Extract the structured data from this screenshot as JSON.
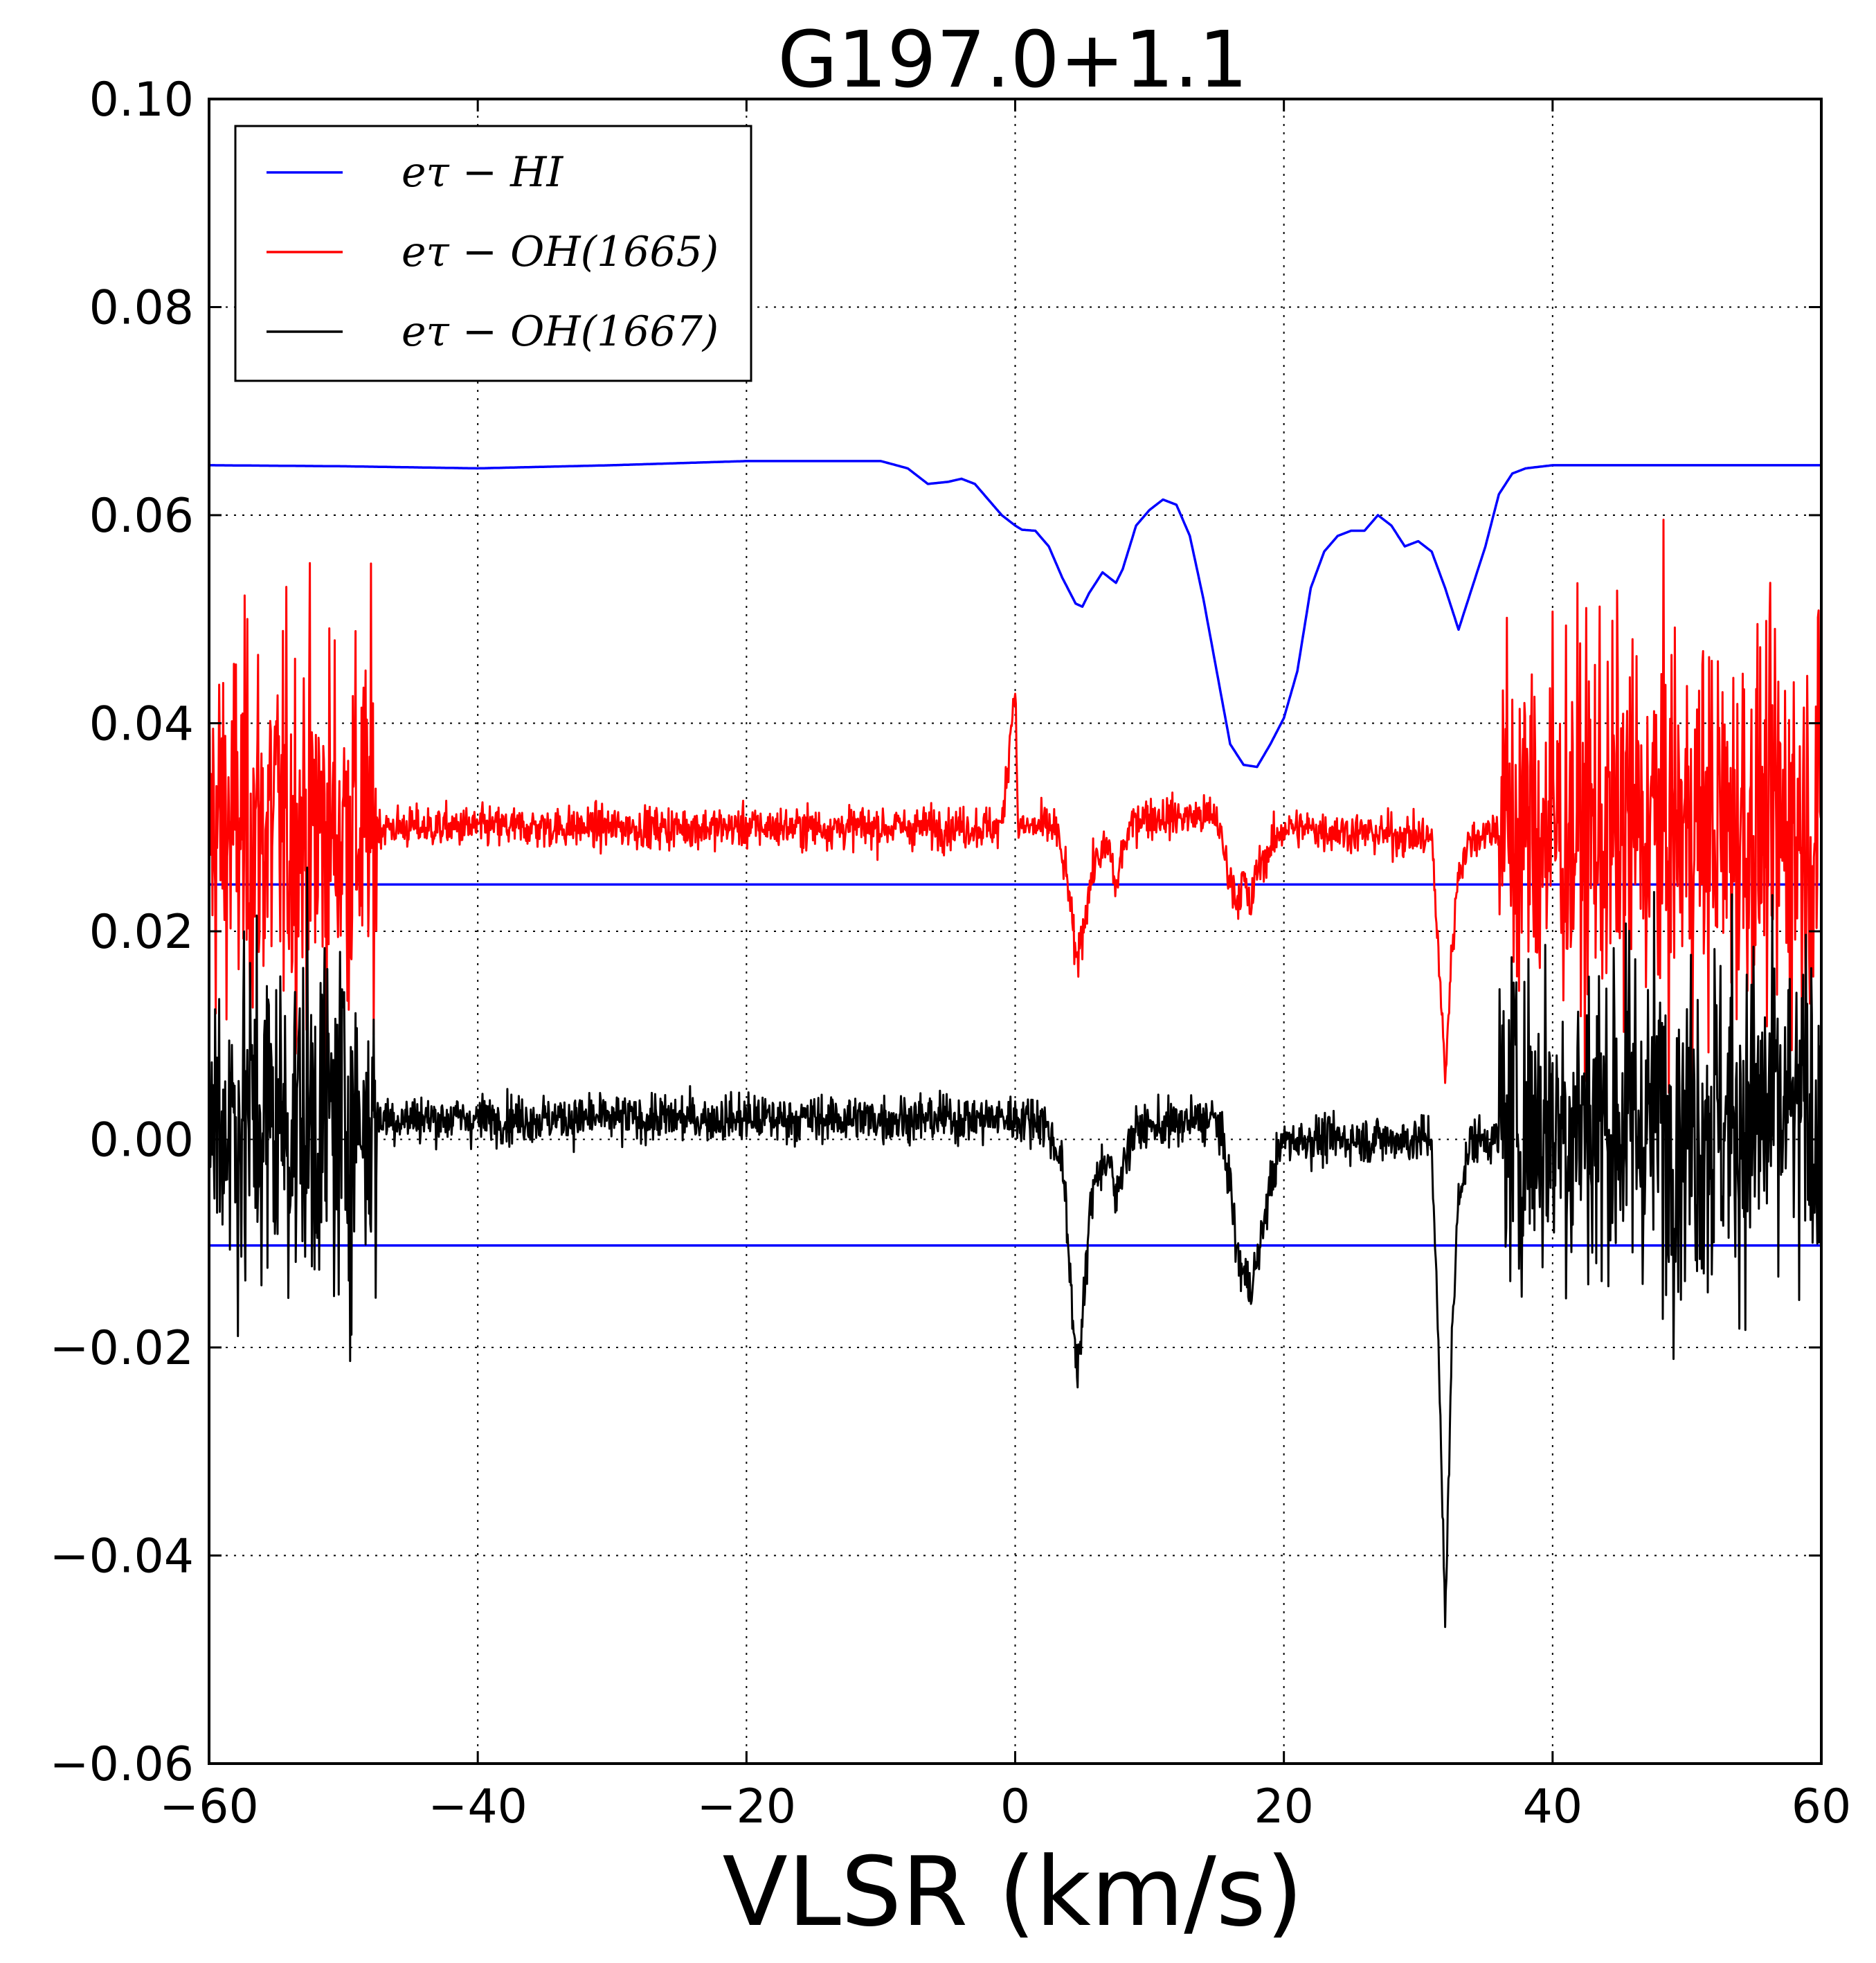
{
  "chart_data": {
    "type": "line",
    "title": "G197.0+1.1",
    "xlabel": "VLSR (km/s)",
    "ylabel": "",
    "xlim": [
      -60,
      60
    ],
    "ylim": [
      -0.06,
      0.1
    ],
    "xticks": [
      -60,
      -40,
      -20,
      0,
      20,
      40,
      60
    ],
    "xtick_labels": [
      "−60",
      "−40",
      "−20",
      "0",
      "20",
      "40",
      "60"
    ],
    "yticks": [
      -0.06,
      -0.04,
      -0.02,
      0.0,
      0.02,
      0.04,
      0.06,
      0.08,
      0.1
    ],
    "ytick_labels": [
      "−0.06",
      "−0.04",
      "−0.02",
      "0.00",
      "0.02",
      "0.04",
      "0.06",
      "0.08",
      "0.10"
    ],
    "grid": true,
    "legend_position": "top-left",
    "series": [
      {
        "name": "eτ − HI",
        "color": "#0000ff",
        "x": [
          -60,
          -50,
          -40,
          -30,
          -20,
          -10,
          -8,
          -6.5,
          -5,
          -4,
          -3,
          -2,
          -1,
          0,
          0.5,
          1.5,
          2.5,
          3.5,
          4.5,
          5,
          5.5,
          6.5,
          7.5,
          8,
          9,
          10,
          11,
          12,
          13,
          14,
          15,
          16,
          17,
          18,
          19,
          20,
          21,
          22,
          23,
          24,
          25,
          26,
          27,
          28,
          29,
          30,
          31,
          32,
          33,
          34,
          35,
          36,
          37,
          38,
          40,
          50,
          60
        ],
        "y": [
          0.0648,
          0.0647,
          0.0645,
          0.0648,
          0.0652,
          0.0652,
          0.0645,
          0.063,
          0.0632,
          0.0635,
          0.063,
          0.0615,
          0.06,
          0.059,
          0.0586,
          0.0585,
          0.057,
          0.054,
          0.0515,
          0.0512,
          0.0525,
          0.0545,
          0.0535,
          0.0548,
          0.059,
          0.0605,
          0.0615,
          0.061,
          0.058,
          0.052,
          0.045,
          0.038,
          0.036,
          0.0358,
          0.038,
          0.0405,
          0.045,
          0.053,
          0.0565,
          0.058,
          0.0585,
          0.0585,
          0.06,
          0.059,
          0.057,
          0.0575,
          0.0565,
          0.053,
          0.049,
          0.053,
          0.057,
          0.062,
          0.064,
          0.0645,
          0.0648,
          0.0648,
          0.0648
        ]
      },
      {
        "name": "eτ − OH(1665)",
        "color": "#ff0000",
        "baseline": 0.03,
        "x": [
          -60,
          -48,
          -47,
          -30,
          -20,
          -10,
          -1,
          0,
          0.2,
          3,
          4,
          4.5,
          5,
          5.5,
          6,
          7,
          7.5,
          8,
          9,
          15,
          15.8,
          16.5,
          17,
          17.5,
          18,
          19,
          20,
          31,
          31.5,
          32,
          32.5,
          33,
          34,
          36,
          40,
          50,
          60
        ],
        "y": [
          0.03,
          0.03,
          0.03,
          0.03,
          0.03,
          0.03,
          0.03,
          0.044,
          0.03,
          0.03,
          0.024,
          0.017,
          0.02,
          0.024,
          0.027,
          0.028,
          0.024,
          0.028,
          0.031,
          0.031,
          0.026,
          0.023,
          0.025,
          0.022,
          0.026,
          0.028,
          0.03,
          0.029,
          0.018,
          0.006,
          0.018,
          0.026,
          0.029,
          0.03,
          0.03,
          0.03,
          0.03
        ]
      },
      {
        "name": "eτ − OH(1667)",
        "color": "#000000",
        "baseline": 0.002,
        "x": [
          -60,
          -48,
          -47,
          -30,
          -20,
          -10,
          -1,
          2,
          3.5,
          4.3,
          4.6,
          5,
          5.5,
          6,
          7,
          7.5,
          8,
          9,
          15,
          16,
          16.5,
          17,
          17.5,
          18,
          19,
          20,
          31,
          31.5,
          32,
          32.5,
          33,
          34,
          36,
          40,
          50,
          60
        ],
        "y": [
          0.0,
          0.002,
          0.002,
          0.002,
          0.002,
          0.002,
          0.002,
          0.002,
          -0.002,
          -0.017,
          -0.022,
          -0.018,
          -0.008,
          -0.003,
          -0.002,
          -0.006,
          -0.002,
          0.001,
          0.002,
          -0.004,
          -0.011,
          -0.013,
          -0.014,
          -0.012,
          -0.004,
          0.0,
          0.0,
          -0.02,
          -0.046,
          -0.02,
          -0.005,
          0.0,
          0.0,
          0.0,
          0.0,
          0.0
        ]
      }
    ],
    "reference_lines": [
      {
        "y": 0.0245,
        "color": "#0000ff"
      },
      {
        "y": -0.0102,
        "color": "#0000ff"
      }
    ],
    "legend": {
      "entries": [
        {
          "text": "eτ − HI",
          "color": "#0000ff"
        },
        {
          "text": "eτ − OH(1665)",
          "color": "#ff0000"
        },
        {
          "text": "eτ − OH(1667)",
          "color": "#000000"
        }
      ]
    },
    "noise_regions": [
      {
        "x": [
          -60,
          -47.5
        ],
        "description": "strong noise"
      },
      {
        "x": [
          36,
          60
        ],
        "description": "strong noise"
      }
    ]
  }
}
